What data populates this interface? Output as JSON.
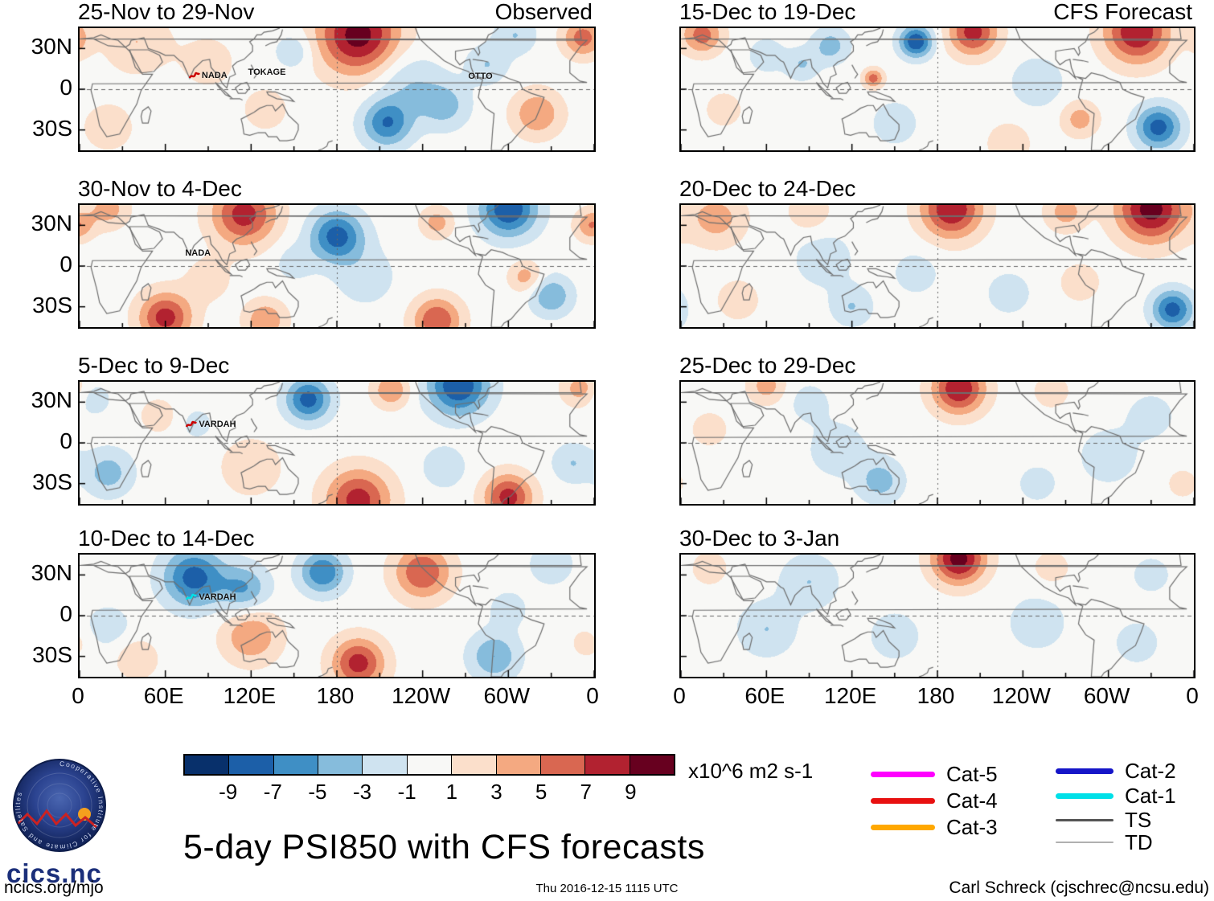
{
  "chart_data": {
    "type": "heatmap",
    "title": "5-day PSI850 with CFS forecasts",
    "units_label": "x10^6 m2 s-1",
    "column_headers": [
      "Observed",
      "CFS Forecast"
    ],
    "x_ticks": [
      "0",
      "60E",
      "120E",
      "180",
      "120W",
      "60W",
      "0"
    ],
    "y_ticks": [
      "30N",
      "0",
      "30S"
    ],
    "lat_range": [
      -45,
      45
    ],
    "lon_range": [
      0,
      360
    ],
    "colorbar": {
      "levels": [
        -9,
        -7,
        -5,
        -3,
        -1,
        1,
        3,
        5,
        7,
        9
      ],
      "tick_labels": [
        "-9",
        "-7",
        "-5",
        "-3",
        "-1",
        "1",
        "3",
        "5",
        "7",
        "9"
      ],
      "colors": [
        "#08306b",
        "#1c5fa8",
        "#3f8fc5",
        "#86bcdc",
        "#cfe3f0",
        "#f8f8f6",
        "#fbdfcb",
        "#f4a981",
        "#d96751",
        "#b22230",
        "#67001f"
      ]
    },
    "legend": [
      {
        "label": "Cat-5",
        "color": "#ff00ff",
        "weight": 7
      },
      {
        "label": "Cat-4",
        "color": "#e81010",
        "weight": 7
      },
      {
        "label": "Cat-3",
        "color": "#ffa800",
        "weight": 7
      },
      {
        "label": "Cat-2",
        "color": "#1515c8",
        "weight": 7
      },
      {
        "label": "Cat-1",
        "color": "#00e0e8",
        "weight": 7
      },
      {
        "label": "TS",
        "color": "#555555",
        "weight": 3
      },
      {
        "label": "TD",
        "color": "#b0b0b0",
        "weight": 2
      }
    ],
    "panels": [
      {
        "title": "25-Nov to 29-Nov",
        "storms": [
          {
            "name": "NADA",
            "lon": 86,
            "lat": 8,
            "marker": "#cc0000"
          },
          {
            "name": "TOKAGE",
            "lon": 128,
            "lat": 10,
            "marker": null
          },
          {
            "name": "OTTO",
            "lon": 282,
            "lat": 7,
            "marker": null
          }
        ],
        "centers": [
          [
            40,
            35,
            3,
            16
          ],
          [
            90,
            20,
            2,
            14
          ],
          [
            150,
            28,
            -3,
            9
          ],
          [
            195,
            40,
            10,
            20
          ],
          [
            230,
            5,
            -3,
            16
          ],
          [
            215,
            -25,
            -7,
            12
          ],
          [
            255,
            -12,
            -4,
            12
          ],
          [
            285,
            18,
            -3,
            10
          ],
          [
            320,
            -18,
            5,
            12
          ],
          [
            352,
            38,
            6,
            10
          ],
          [
            20,
            -28,
            2,
            14
          ],
          [
            130,
            -15,
            2,
            12
          ],
          [
            305,
            40,
            -3,
            10
          ]
        ]
      },
      {
        "title": "30-Nov to 4-Dec",
        "storms": [
          {
            "name": "NADA",
            "lon": 84,
            "lat": 7,
            "marker": null
          }
        ],
        "centers": [
          [
            20,
            42,
            4,
            10
          ],
          [
            115,
            38,
            8,
            16
          ],
          [
            180,
            22,
            -8,
            13
          ],
          [
            150,
            3,
            -2,
            10
          ],
          [
            300,
            42,
            -9,
            14
          ],
          [
            250,
            32,
            4,
            8
          ],
          [
            358,
            30,
            5,
            8
          ],
          [
            60,
            -38,
            8,
            13
          ],
          [
            130,
            -40,
            5,
            10
          ],
          [
            250,
            -40,
            7,
            12
          ],
          [
            330,
            -22,
            -5,
            10
          ],
          [
            312,
            -8,
            4,
            8
          ],
          [
            200,
            -8,
            -2,
            16
          ],
          [
            90,
            -10,
            2,
            12
          ]
        ]
      },
      {
        "title": "5-Dec to 9-Dec",
        "storms": [
          {
            "name": "VARDAH",
            "lon": 84,
            "lat": 12,
            "marker": "#cc0000"
          }
        ],
        "centers": [
          [
            160,
            32,
            -8,
            11
          ],
          [
            218,
            39,
            5,
            9
          ],
          [
            265,
            42,
            -9,
            15
          ],
          [
            350,
            40,
            4,
            9
          ],
          [
            82,
            14,
            -2,
            8
          ],
          [
            55,
            20,
            2,
            10
          ],
          [
            120,
            -18,
            3,
            14
          ],
          [
            20,
            -22,
            -4,
            12
          ],
          [
            195,
            -42,
            8,
            16
          ],
          [
            300,
            -40,
            8,
            12
          ],
          [
            255,
            -18,
            -3,
            10
          ],
          [
            345,
            -15,
            -3,
            10
          ],
          [
            10,
            32,
            -2,
            9
          ]
        ]
      },
      {
        "title": "10-Dec to 14-Dec",
        "storms": [
          {
            "name": "VARDAH",
            "lon": 84,
            "lat": 12,
            "marker": "#00e0e8"
          }
        ],
        "centers": [
          [
            80,
            28,
            -8,
            15
          ],
          [
            115,
            20,
            -5,
            12
          ],
          [
            170,
            32,
            -7,
            11
          ],
          [
            240,
            32,
            7,
            14
          ],
          [
            330,
            38,
            -3,
            10
          ],
          [
            120,
            -15,
            5,
            14
          ],
          [
            195,
            -35,
            8,
            13
          ],
          [
            290,
            -30,
            -5,
            12
          ],
          [
            20,
            -8,
            -2,
            12
          ],
          [
            40,
            -32,
            3,
            10
          ],
          [
            300,
            5,
            -2,
            10
          ],
          [
            355,
            -20,
            2,
            8
          ]
        ]
      },
      {
        "title": "15-Dec to 19-Dec",
        "storms": [],
        "centers": [
          [
            15,
            40,
            6,
            10
          ],
          [
            60,
            25,
            -2,
            10
          ],
          [
            105,
            32,
            -4,
            9
          ],
          [
            165,
            35,
            -9,
            8
          ],
          [
            205,
            42,
            8,
            12
          ],
          [
            320,
            42,
            9,
            16
          ],
          [
            135,
            8,
            6,
            5
          ],
          [
            250,
            5,
            -3,
            12
          ],
          [
            335,
            -28,
            -8,
            11
          ],
          [
            280,
            -22,
            4,
            9
          ],
          [
            150,
            -25,
            -3,
            10
          ],
          [
            30,
            -15,
            2,
            10
          ],
          [
            85,
            18,
            -3,
            8
          ],
          [
            230,
            -40,
            3,
            10
          ]
        ]
      },
      {
        "title": "20-Dec to 24-Dec",
        "storms": [],
        "centers": [
          [
            25,
            35,
            4,
            14
          ],
          [
            90,
            40,
            3,
            10
          ],
          [
            190,
            42,
            9,
            15
          ],
          [
            330,
            42,
            10,
            17
          ],
          [
            270,
            40,
            4,
            10
          ],
          [
            100,
            5,
            -2,
            16
          ],
          [
            345,
            -32,
            -8,
            10
          ],
          [
            280,
            -12,
            3,
            9
          ],
          [
            40,
            -25,
            2,
            12
          ],
          [
            120,
            -30,
            -3,
            10
          ],
          [
            230,
            -20,
            -2,
            12
          ],
          [
            165,
            -5,
            -2,
            12
          ]
        ]
      },
      {
        "title": "25-Dec to 29-Dec",
        "storms": [],
        "centers": [
          [
            60,
            42,
            4,
            9
          ],
          [
            195,
            40,
            9,
            13
          ],
          [
            260,
            38,
            2,
            10
          ],
          [
            110,
            -5,
            -2,
            16
          ],
          [
            140,
            -28,
            -4,
            11
          ],
          [
            300,
            -10,
            -2,
            16
          ],
          [
            330,
            20,
            -2,
            12
          ],
          [
            20,
            10,
            2,
            10
          ],
          [
            352,
            -30,
            2,
            8
          ],
          [
            250,
            -30,
            -2,
            10
          ],
          [
            90,
            30,
            -2,
            10
          ]
        ]
      },
      {
        "title": "30-Dec to 3-Jan",
        "storms": [],
        "centers": [
          [
            195,
            42,
            10,
            13
          ],
          [
            260,
            35,
            2,
            10
          ],
          [
            90,
            25,
            -3,
            14
          ],
          [
            60,
            -10,
            -3,
            14
          ],
          [
            150,
            -15,
            -2,
            14
          ],
          [
            250,
            -5,
            -2,
            16
          ],
          [
            320,
            -20,
            -2,
            12
          ],
          [
            330,
            30,
            -2,
            10
          ],
          [
            20,
            35,
            2,
            10
          ]
        ]
      }
    ]
  },
  "logo": {
    "wordmark": "cics.nc",
    "ring_text": "Cooperative Institute for Climate and Satellites"
  },
  "footer": {
    "left": "ncics.org/mjo",
    "center": "Thu 2016-12-15 1115 UTC",
    "right": "Carl Schreck (cjschrec@ncsu.edu)"
  }
}
